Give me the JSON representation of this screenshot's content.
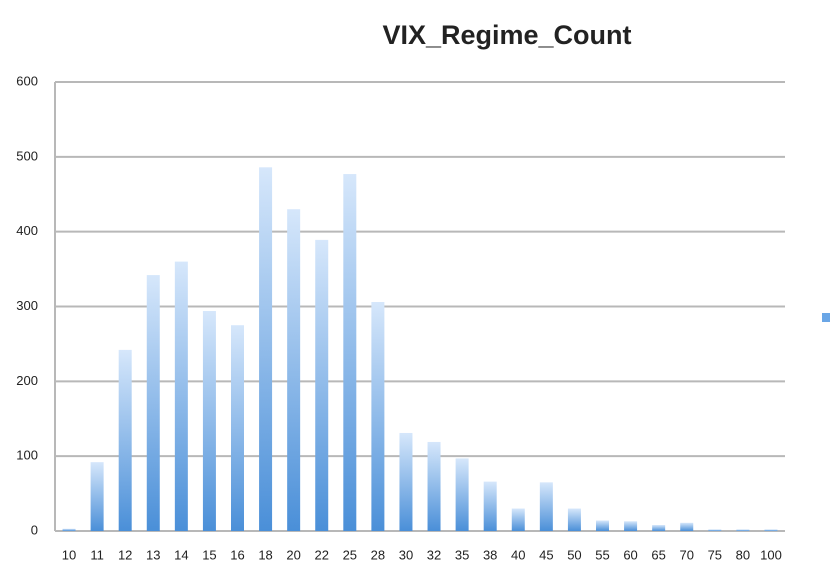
{
  "chart_data": {
    "type": "bar",
    "title": "VIX_Regime_Count",
    "categories": [
      "10",
      "11",
      "12",
      "13",
      "14",
      "15",
      "16",
      "18",
      "20",
      "22",
      "25",
      "28",
      "30",
      "32",
      "35",
      "38",
      "40",
      "45",
      "50",
      "55",
      "60",
      "65",
      "70",
      "75",
      "80",
      "100"
    ],
    "values": [
      3,
      92,
      242,
      342,
      360,
      294,
      275,
      486,
      430,
      389,
      477,
      306,
      131,
      119,
      97,
      66,
      30,
      65,
      30,
      14,
      13,
      8,
      11,
      2,
      2,
      2
    ],
    "color": "#4a8fd8",
    "ylim": [
      0,
      600
    ],
    "yticks": [
      0,
      100,
      200,
      300,
      400,
      500,
      600
    ],
    "grid": true
  }
}
